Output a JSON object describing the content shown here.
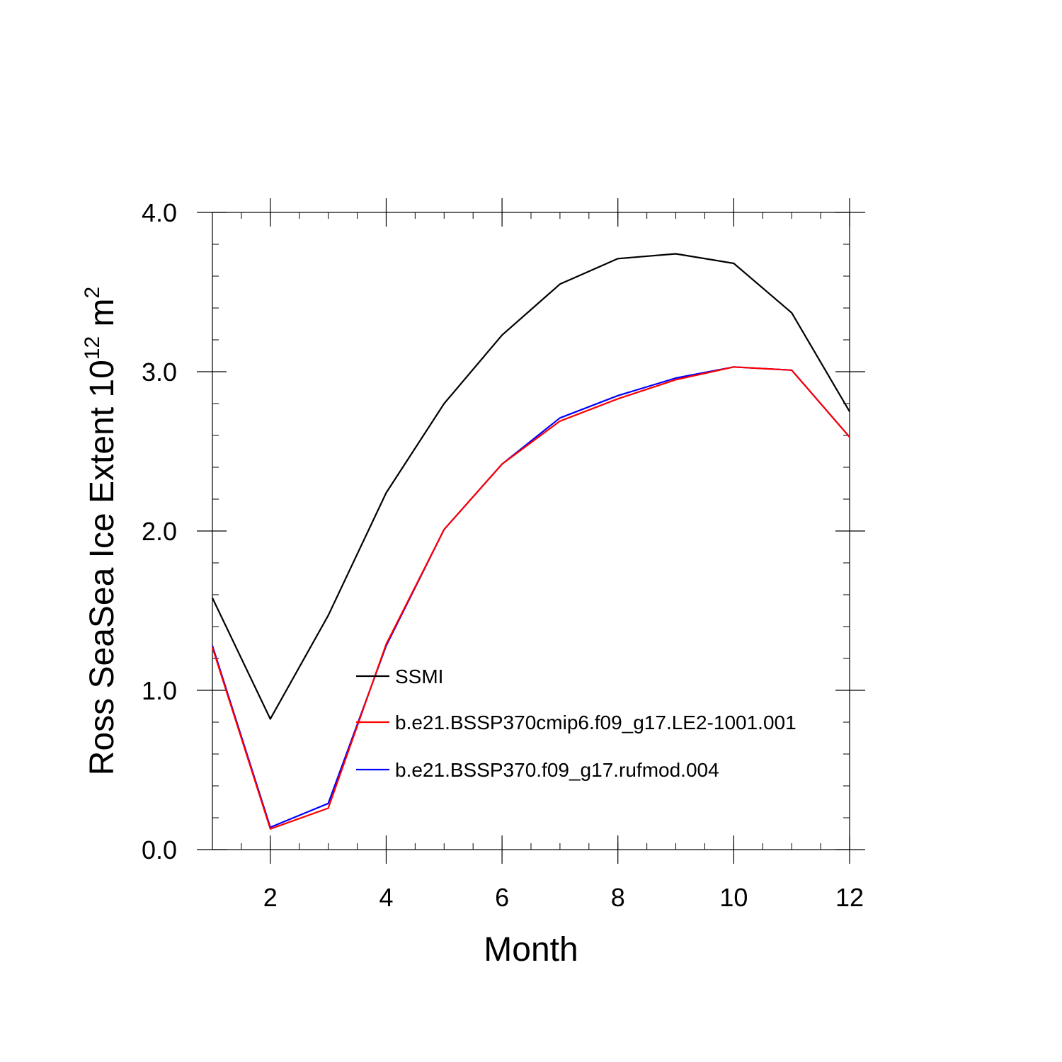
{
  "chart_data": {
    "type": "line",
    "xlabel": "Month",
    "ylabel_prefix": "Ross SeaSea Ice Extent 10",
    "ylabel_exp1": "12",
    "ylabel_unit": " m",
    "ylabel_exp2": "2",
    "xlim": [
      1,
      12
    ],
    "ylim": [
      0,
      4
    ],
    "xticks": [
      2,
      4,
      6,
      8,
      10,
      12
    ],
    "yticks": [
      0,
      1,
      2,
      3,
      4
    ],
    "ytick_labels": [
      "0.0",
      "1.0",
      "2.0",
      "3.0",
      "4.0"
    ],
    "xtick_labels": [
      "2",
      "4",
      "6",
      "8",
      "10",
      "12"
    ],
    "x": [
      1,
      2,
      3,
      4,
      5,
      6,
      7,
      8,
      9,
      10,
      11,
      12
    ],
    "series": [
      {
        "name": "SSMI",
        "color": "#000000",
        "values": [
          1.58,
          0.82,
          1.47,
          2.24,
          2.8,
          3.23,
          3.55,
          3.71,
          3.74,
          3.68,
          3.37,
          2.75
        ]
      },
      {
        "name": "b.e21.BSSP370cmip6.f09_g17.LE2-1001.001",
        "color": "#ff0000",
        "values": [
          1.27,
          0.13,
          0.26,
          1.29,
          2.01,
          2.42,
          2.69,
          2.83,
          2.95,
          3.03,
          3.01,
          2.59
        ]
      },
      {
        "name": "b.e21.BSSP370.f09_g17.rufmod.004",
        "color": "#0000ff",
        "values": [
          1.28,
          0.14,
          0.29,
          1.28,
          2.01,
          2.42,
          2.71,
          2.85,
          2.96,
          3.03,
          3.01,
          2.59
        ]
      }
    ],
    "legend_order": [
      0,
      1,
      2
    ],
    "legend_position": "lower-center"
  }
}
